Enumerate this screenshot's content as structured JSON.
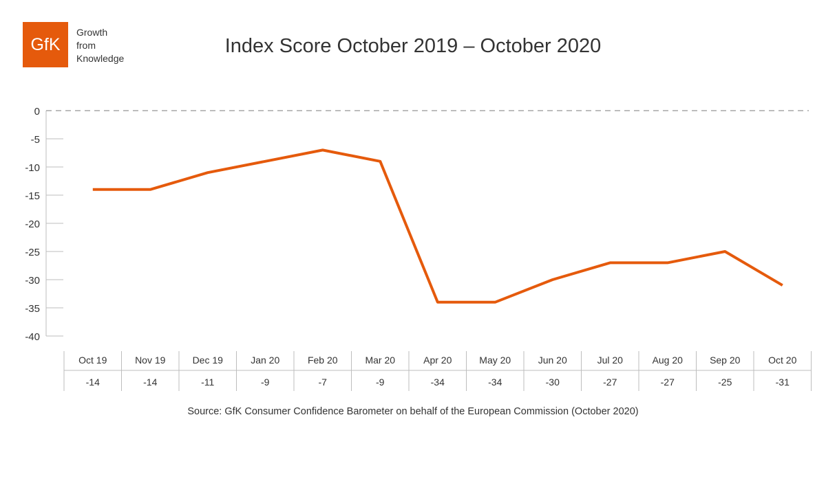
{
  "logo": {
    "text": "GfK",
    "tagline": [
      "Growth",
      "from",
      "Knowledge"
    ],
    "color": "#e55a0c"
  },
  "title": "Index Score October 2019 – October 2020",
  "source": "Source: GfK Consumer Confidence Barometer on behalf of the European Commission (October 2020)",
  "chart_data": {
    "type": "line",
    "title": "Index Score October 2019 – October 2020",
    "categories": [
      "Oct 19",
      "Nov 19",
      "Dec 19",
      "Jan 20",
      "Feb 20",
      "Mar 20",
      "Apr 20",
      "May 20",
      "Jun 20",
      "Jul 20",
      "Aug 20",
      "Sep 20",
      "Oct 20"
    ],
    "series": [
      {
        "values": [
          -14,
          -14,
          -11,
          -9,
          -7,
          -9,
          -34,
          -34,
          -30,
          -27,
          -27,
          -25,
          -31
        ]
      }
    ],
    "table_values": [
      "-14",
      "-14",
      "-11",
      "-9",
      "-7",
      "-9",
      "-34",
      "-34",
      "-30",
      "-27",
      "-27",
      "-25",
      "-31"
    ],
    "yticks": [
      0,
      -5,
      -10,
      -15,
      -20,
      -25,
      -30,
      -35,
      -40
    ],
    "ylim": [
      -40,
      0
    ],
    "xlabel": "",
    "ylabel": "",
    "grid": false,
    "reference_line": {
      "value": 0,
      "style": "dashed"
    },
    "line_color": "#e55a0c"
  }
}
